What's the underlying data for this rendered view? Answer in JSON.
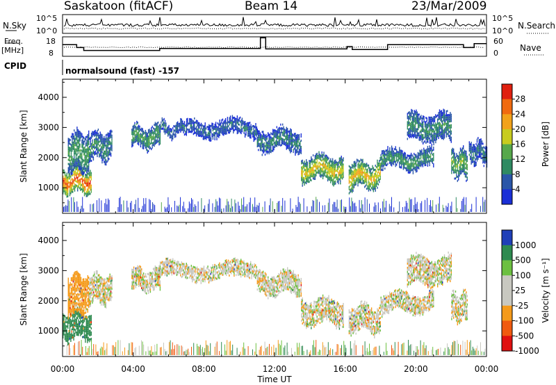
{
  "header": {
    "station": "Saskatoon (fitACF)",
    "beam": "Beam 14",
    "date": "23/Mar/2009"
  },
  "top_panels": {
    "nsky_label": "N.Sky",
    "nsky_ticks": [
      "10^5",
      "10^0"
    ],
    "nsearch_label": "N.Search",
    "nsearch_ticks": [
      "10^5",
      "10^0"
    ],
    "freq_label": "Freq.",
    "freq_unit": "[MHz]",
    "freq_ticks": [
      "18",
      "8"
    ],
    "nave_label": "Nave",
    "nave_ticks": [
      "60",
      "0"
    ],
    "cpid_label": "CPID",
    "cpid_value": "normalsound (fast) -157"
  },
  "colors": {
    "power_scale": [
      "#1a2fd6",
      "#2a56a8",
      "#2f8a62",
      "#57a84b",
      "#c8cc1e",
      "#f2a21a",
      "#f06a10",
      "#e02010"
    ],
    "velocity_scale": [
      "#e01010",
      "#f05a10",
      "#f59a1a",
      "#c8c8c0",
      "#c8c8c0",
      "#6cc040",
      "#2e8a50",
      "#1f3fb8"
    ]
  },
  "chart_data": [
    {
      "type": "heatmap",
      "name": "power",
      "ylabel": "Slant Range [km]",
      "yticks": [
        1000,
        2000,
        3000,
        4000
      ],
      "ylim": [
        150,
        4600
      ],
      "xlim": [
        0,
        24
      ],
      "colorbar_label": "Power [dB]",
      "colorbar_ticks": [
        "28",
        "24",
        "20",
        "16",
        "12",
        "8",
        "4"
      ],
      "colorbar_range": [
        0,
        32
      ],
      "echo_bands": [
        {
          "t0": 0.0,
          "t1": 1.6,
          "r0": 800,
          "r1": 1700,
          "v": 26
        },
        {
          "t0": 0.3,
          "t1": 1.5,
          "r0": 1500,
          "r1": 2900,
          "v": 12
        },
        {
          "t0": 1.5,
          "t1": 2.8,
          "r0": 1900,
          "r1": 2900,
          "v": 10
        },
        {
          "t0": 3.9,
          "t1": 5.5,
          "r0": 2300,
          "r1": 3100,
          "v": 12
        },
        {
          "t0": 5.5,
          "t1": 7.0,
          "r0": 2700,
          "r1": 3200,
          "v": 8
        },
        {
          "t0": 7.0,
          "t1": 11.0,
          "r0": 2700,
          "r1": 3300,
          "v": 7
        },
        {
          "t0": 11.0,
          "t1": 13.5,
          "r0": 2200,
          "r1": 3000,
          "v": 9
        },
        {
          "t0": 13.5,
          "t1": 15.9,
          "r0": 1200,
          "r1": 2100,
          "v": 19
        },
        {
          "t0": 16.2,
          "t1": 18.0,
          "r0": 950,
          "r1": 1900,
          "v": 20
        },
        {
          "t0": 18.0,
          "t1": 21.0,
          "r0": 1600,
          "r1": 2300,
          "v": 11
        },
        {
          "t0": 19.5,
          "t1": 22.0,
          "r0": 2500,
          "r1": 3500,
          "v": 10
        },
        {
          "t0": 22.0,
          "t1": 22.9,
          "r0": 1300,
          "r1": 2300,
          "v": 14
        },
        {
          "t0": 23.0,
          "t1": 24.0,
          "r0": 1800,
          "r1": 2600,
          "v": 8
        }
      ]
    },
    {
      "type": "heatmap",
      "name": "velocity",
      "ylabel": "Slant Range [km]",
      "yticks": [
        1000,
        2000,
        3000,
        4000
      ],
      "ylim": [
        150,
        4600
      ],
      "xlim": [
        0,
        24
      ],
      "xlabel": "Time UT",
      "xticks": [
        "00:00",
        "04:00",
        "08:00",
        "12:00",
        "16:00",
        "20:00",
        "00:00"
      ],
      "colorbar_label": "Velocity [m s⁻¹]",
      "colorbar_ticks": [
        "1000",
        "500",
        "100",
        "25",
        "-25",
        "-100",
        "-500",
        "-1000"
      ],
      "echo_bands": [
        {
          "t0": 0.0,
          "t1": 1.6,
          "r0": 700,
          "r1": 1700,
          "v": 600
        },
        {
          "t0": 0.3,
          "t1": 1.5,
          "r0": 1500,
          "r1": 2900,
          "v": -150
        },
        {
          "t0": 1.5,
          "t1": 2.8,
          "r0": 1900,
          "r1": 2900,
          "v": 0
        },
        {
          "t0": 3.9,
          "t1": 5.5,
          "r0": 2300,
          "r1": 3100,
          "v": 0
        },
        {
          "t0": 5.5,
          "t1": 11.0,
          "r0": 2700,
          "r1": 3300,
          "v": 0
        },
        {
          "t0": 11.0,
          "t1": 13.5,
          "r0": 2200,
          "r1": 3000,
          "v": 0
        },
        {
          "t0": 13.5,
          "t1": 15.9,
          "r0": 1200,
          "r1": 2100,
          "v": 0
        },
        {
          "t0": 16.2,
          "t1": 18.0,
          "r0": 950,
          "r1": 1900,
          "v": 0
        },
        {
          "t0": 18.0,
          "t1": 21.0,
          "r0": 1600,
          "r1": 2300,
          "v": 0
        },
        {
          "t0": 19.5,
          "t1": 22.0,
          "r0": 2500,
          "r1": 3500,
          "v": 0
        },
        {
          "t0": 22.0,
          "t1": 22.9,
          "r0": 1300,
          "r1": 2300,
          "v": 0
        }
      ]
    }
  ]
}
